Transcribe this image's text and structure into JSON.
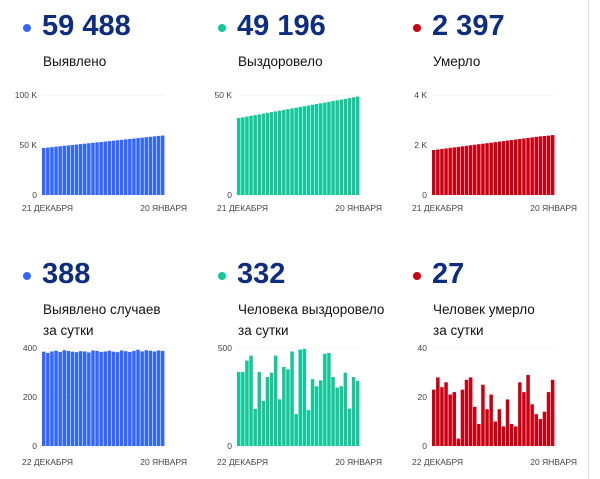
{
  "panels": [
    {
      "id": "cases-total",
      "value": "59 488",
      "label": [
        "Выявлено"
      ],
      "color": "#3366ff"
    },
    {
      "id": "recovered-total",
      "value": "49 196",
      "label": [
        "Выздоровело"
      ],
      "color": "#14c79a"
    },
    {
      "id": "deaths-total",
      "value": "2 397",
      "label": [
        "Умерло"
      ],
      "color": "#cc0011"
    },
    {
      "id": "cases-daily",
      "value": "388",
      "label": [
        "Выявлено случаев",
        "за сутки"
      ],
      "color": "#3366ff"
    },
    {
      "id": "recovered-daily",
      "value": "332",
      "label": [
        "Человека выздоровело",
        "за сутки"
      ],
      "color": "#14c79a"
    },
    {
      "id": "deaths-daily",
      "value": "27",
      "label": [
        "Человек умерло",
        "за сутки"
      ],
      "color": "#cc0011"
    }
  ],
  "chart_data": [
    {
      "type": "bar",
      "title": "Выявлено",
      "ylim": [
        0,
        100000
      ],
      "yticks": [
        "0",
        "50 K",
        "100 K"
      ],
      "ytick_values": [
        0,
        50000,
        100000
      ],
      "xlabels": [
        "21 ДЕКАБРЯ",
        "20 ЯНВАРЯ"
      ],
      "values": [
        47018,
        47448,
        47878,
        48308,
        48738,
        49168,
        49598,
        50028,
        50458,
        50888,
        51318,
        51748,
        52178,
        52608,
        53038,
        53468,
        53898,
        54328,
        54758,
        55188,
        55618,
        56048,
        56478,
        56908,
        57338,
        57768,
        58198,
        58628,
        59100,
        59488
      ]
    },
    {
      "type": "bar",
      "title": "Выздоровело",
      "ylim": [
        0,
        50000
      ],
      "yticks": [
        "0",
        "50 K"
      ],
      "ytick_values": [
        0,
        50000
      ],
      "xlabels": [
        "21 ДЕКАБРЯ",
        "20 ЯНВАРЯ"
      ],
      "values": [
        38466,
        38836,
        39206,
        39576,
        39946,
        40316,
        40686,
        41056,
        41426,
        41796,
        42166,
        42536,
        42906,
        43276,
        43646,
        44016,
        44386,
        44756,
        45126,
        45496,
        45866,
        46236,
        46606,
        46976,
        47346,
        47716,
        48086,
        48456,
        48864,
        49196
      ]
    },
    {
      "type": "bar",
      "title": "Умерло",
      "ylim": [
        0,
        4000
      ],
      "yticks": [
        "0",
        "2 K",
        "4 K"
      ],
      "ytick_values": [
        0,
        2000,
        4000
      ],
      "xlabels": [
        "21 ДЕКАБРЯ",
        "20 ЯНВАРЯ"
      ],
      "values": [
        1800,
        1821,
        1842,
        1863,
        1884,
        1905,
        1926,
        1947,
        1968,
        1989,
        2010,
        2031,
        2052,
        2073,
        2094,
        2115,
        2136,
        2157,
        2178,
        2199,
        2220,
        2241,
        2262,
        2283,
        2304,
        2325,
        2346,
        2362,
        2375,
        2397
      ]
    },
    {
      "type": "bar",
      "title": "Выявлено случаев за сутки",
      "ylim": [
        0,
        400
      ],
      "yticks": [
        "0",
        "200",
        "400"
      ],
      "ytick_values": [
        0,
        200,
        400
      ],
      "xlabels": [
        "22 ДЕКАБРЯ",
        "20 ЯНВАРЯ"
      ],
      "values": [
        385,
        380,
        386,
        389,
        384,
        391,
        388,
        385,
        383,
        387,
        386,
        382,
        390,
        388,
        384,
        386,
        389,
        385,
        383,
        390,
        387,
        384,
        388,
        393,
        386,
        391,
        389,
        386,
        390,
        388
      ]
    },
    {
      "type": "bar",
      "title": "Человека выздоровело за сутки",
      "ylim": [
        0,
        500
      ],
      "yticks": [
        "0",
        "500"
      ],
      "ytick_values": [
        0,
        500
      ],
      "xlabels": [
        "22 ДЕКАБРЯ",
        "20 ЯНВАРЯ"
      ],
      "values": [
        377,
        377,
        436,
        461,
        190,
        377,
        230,
        352,
        374,
        461,
        238,
        403,
        391,
        482,
        163,
        492,
        495,
        183,
        341,
        305,
        335,
        470,
        475,
        352,
        298,
        305,
        374,
        191,
        352,
        332
      ]
    },
    {
      "type": "bar",
      "title": "Человек умерло за сутки",
      "ylim": [
        0,
        40
      ],
      "yticks": [
        "0",
        "20",
        "40"
      ],
      "ytick_values": [
        0,
        20,
        40
      ],
      "xlabels": [
        "22 ДЕКАБРЯ",
        "20 ЯНВАРЯ"
      ],
      "values": [
        23,
        28,
        24,
        26,
        21,
        22,
        3,
        23,
        27,
        28,
        16,
        9,
        25,
        15,
        21,
        10,
        15,
        8,
        19,
        9,
        8,
        26,
        22,
        29,
        17,
        13,
        11,
        14,
        22,
        27
      ]
    }
  ]
}
